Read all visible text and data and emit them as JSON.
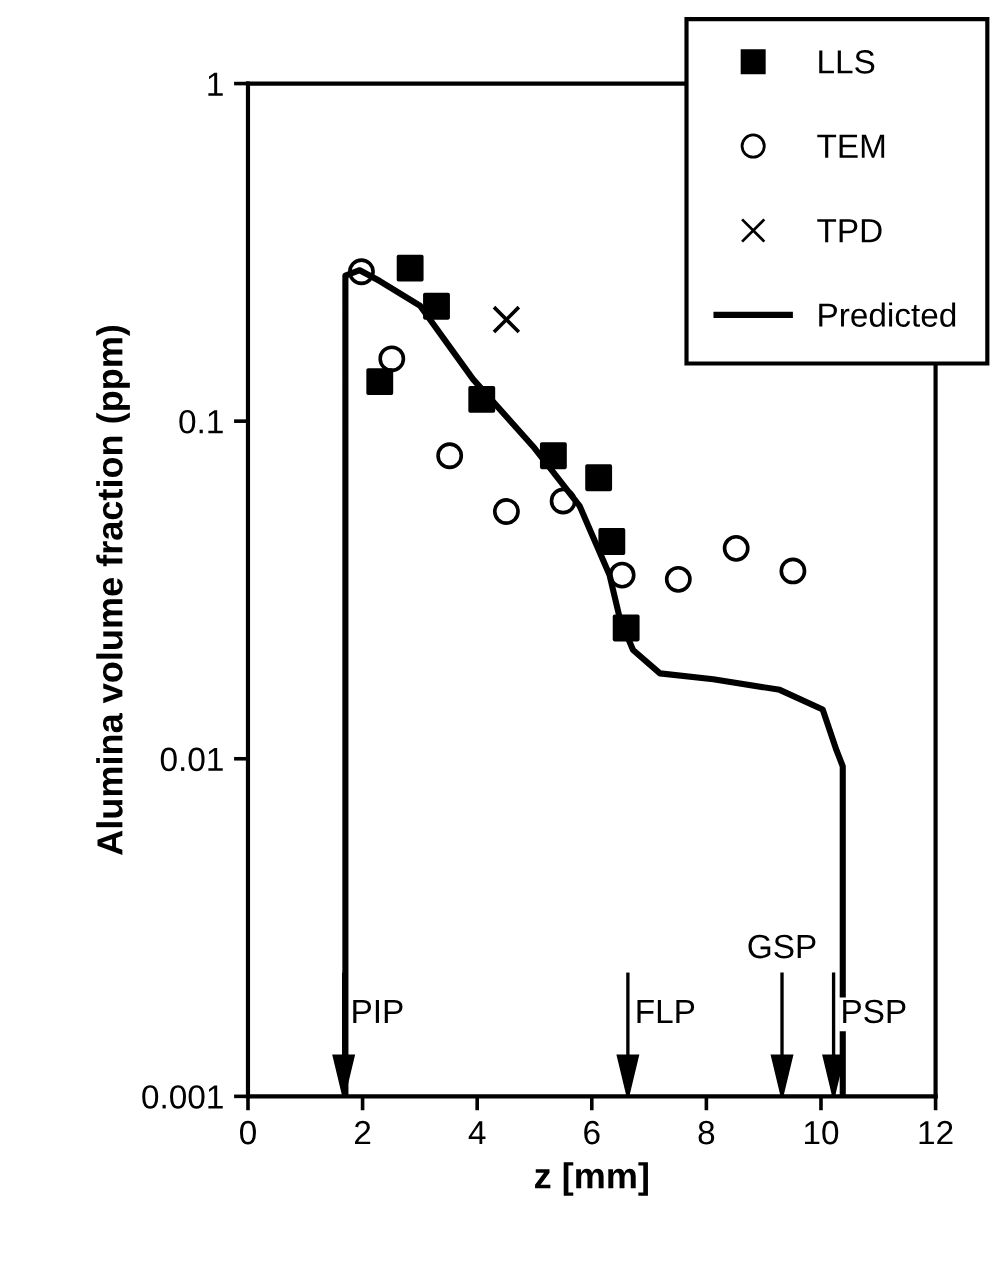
{
  "chart_data": {
    "type": "scatter",
    "xlabel": "z [mm]",
    "ylabel": "Alumina volume fraction (ppm)",
    "log": "y",
    "xlim": [
      0,
      12
    ],
    "xticks": [
      0,
      2,
      4,
      6,
      8,
      10,
      12
    ],
    "ylim": [
      0.001,
      1
    ],
    "yticks": [
      0.001,
      0.01,
      0.1,
      1
    ],
    "grid": false,
    "legend": "top right",
    "series": [
      {
        "name": "LLS",
        "marker": "square",
        "color": "#000000",
        "x": [
          2.3,
          2.83,
          3.29,
          4.08,
          5.33,
          6.12,
          6.35,
          6.6
        ],
        "values": [
          0.131,
          0.284,
          0.219,
          0.116,
          0.079,
          0.068,
          0.044,
          0.0244
        ]
      },
      {
        "name": "TEM",
        "marker": "circle",
        "color": "#000000",
        "x": [
          1.98,
          2.51,
          3.52,
          4.51,
          5.5,
          6.53,
          7.51,
          8.52,
          9.51
        ],
        "values": [
          0.277,
          0.153,
          0.079,
          0.054,
          0.058,
          0.035,
          0.034,
          0.042,
          0.036
        ]
      },
      {
        "name": "TPD",
        "marker": "cross",
        "color": "#000000",
        "x": [
          4.51
        ],
        "values": [
          0.2
        ]
      },
      {
        "name": "Predicted",
        "type": "line",
        "marker": "none",
        "line_style": "solid",
        "color": "#000000",
        "x": [
          1.7,
          1.7,
          1.95,
          2.3,
          3.0,
          3.93,
          4.98,
          5.79,
          5.96,
          6.31,
          6.49,
          6.72,
          7.19,
          8.12,
          9.28,
          10.03,
          10.27,
          10.38,
          10.38
        ],
        "values": [
          0.001,
          0.27,
          0.28,
          0.26,
          0.22,
          0.133,
          0.084,
          0.056,
          0.048,
          0.035,
          0.026,
          0.021,
          0.0179,
          0.0172,
          0.016,
          0.014,
          0.0106,
          0.0095,
          0.001
        ]
      }
    ],
    "ref_lines": [
      {
        "axis": "x",
        "value": 1.67,
        "label": "PIP"
      },
      {
        "axis": "x",
        "value": 6.63,
        "label": "FLP"
      },
      {
        "axis": "x",
        "value": 9.32,
        "label": "GSP"
      },
      {
        "axis": "x",
        "value": 10.22,
        "label": "PSP"
      }
    ]
  }
}
